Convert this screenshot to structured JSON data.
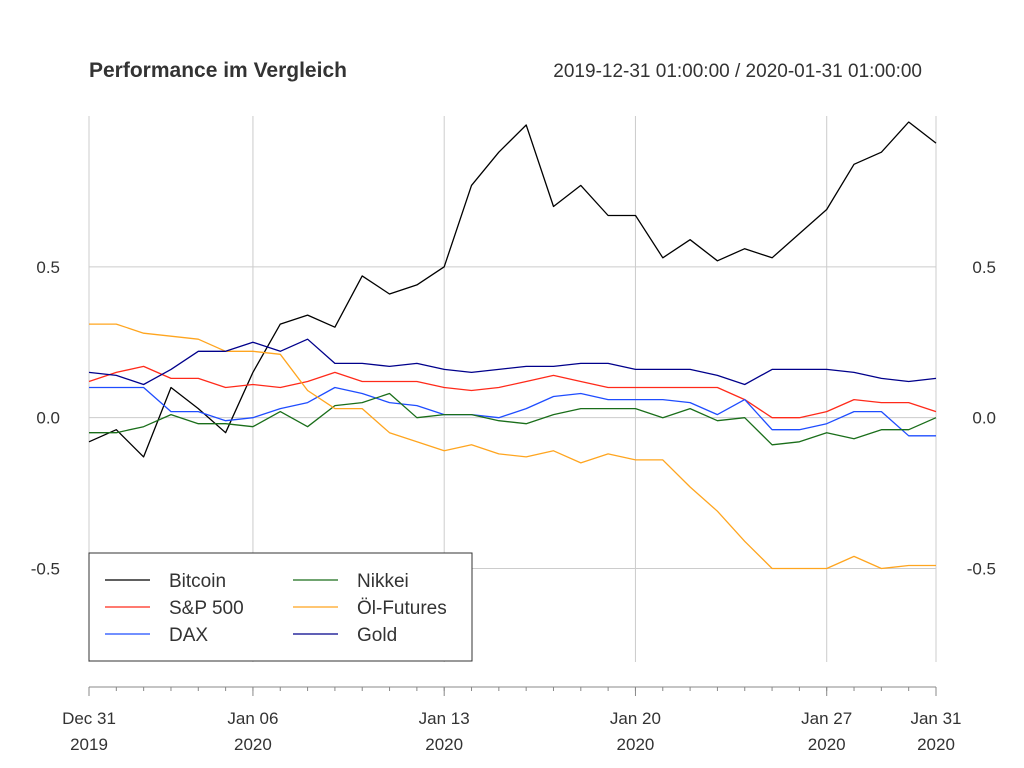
{
  "chart_data": {
    "type": "line",
    "title": "Performance im Vergleich",
    "subtitle": "2019-12-31 01:00:00 / 2020-01-31 01:00:00",
    "xlabel": "",
    "ylabel": "",
    "x": [
      "2019-12-31",
      "2020-01-01",
      "2020-01-02",
      "2020-01-03",
      "2020-01-04",
      "2020-01-05",
      "2020-01-06",
      "2020-01-07",
      "2020-01-08",
      "2020-01-09",
      "2020-01-10",
      "2020-01-11",
      "2020-01-12",
      "2020-01-13",
      "2020-01-14",
      "2020-01-15",
      "2020-01-16",
      "2020-01-17",
      "2020-01-18",
      "2020-01-19",
      "2020-01-20",
      "2020-01-21",
      "2020-01-22",
      "2020-01-23",
      "2020-01-24",
      "2020-01-25",
      "2020-01-26",
      "2020-01-27",
      "2020-01-28",
      "2020-01-29",
      "2020-01-30",
      "2020-01-31"
    ],
    "xlim": [
      "2019-12-31",
      "2020-01-31"
    ],
    "ylim": [
      -0.81,
      1.0
    ],
    "grid": true,
    "legend_position": "bottom-left",
    "x_ticks": [
      {
        "date": "2019-12-31",
        "line1": "Dec 31",
        "line2": "2019"
      },
      {
        "date": "2020-01-06",
        "line1": "Jan 06",
        "line2": "2020"
      },
      {
        "date": "2020-01-13",
        "line1": "Jan 13",
        "line2": "2020"
      },
      {
        "date": "2020-01-20",
        "line1": "Jan 20",
        "line2": "2020"
      },
      {
        "date": "2020-01-27",
        "line1": "Jan 27",
        "line2": "2020"
      },
      {
        "date": "2020-01-31",
        "line1": "Jan 31",
        "line2": "2020"
      }
    ],
    "y_ticks": [
      {
        "value": 0.5,
        "label": "0.5"
      },
      {
        "value": 0.0,
        "label": "0.0"
      },
      {
        "value": -0.5,
        "label": "-0.5"
      }
    ],
    "series": [
      {
        "name": "Bitcoin",
        "color": "#000000",
        "values": [
          -0.08,
          -0.04,
          -0.13,
          0.1,
          0.03,
          -0.05,
          0.15,
          0.31,
          0.34,
          0.3,
          0.47,
          0.41,
          0.44,
          0.5,
          0.77,
          0.88,
          0.97,
          0.7,
          0.77,
          0.67,
          0.67,
          0.53,
          0.59,
          0.52,
          0.56,
          0.53,
          0.61,
          0.69,
          0.84,
          0.88,
          0.98,
          0.91
        ]
      },
      {
        "name": "S&P 500",
        "color": "#ff2a1a",
        "values": [
          0.12,
          0.15,
          0.17,
          0.13,
          0.13,
          0.1,
          0.11,
          0.1,
          0.12,
          0.15,
          0.12,
          0.12,
          0.12,
          0.1,
          0.09,
          0.1,
          0.12,
          0.14,
          0.12,
          0.1,
          0.1,
          0.1,
          0.1,
          0.1,
          0.06,
          0.0,
          0.0,
          0.02,
          0.06,
          0.05,
          0.05,
          0.02
        ]
      },
      {
        "name": "DAX",
        "color": "#1f4dff",
        "values": [
          0.1,
          0.1,
          0.1,
          0.02,
          0.02,
          -0.01,
          0.0,
          0.03,
          0.05,
          0.1,
          0.08,
          0.05,
          0.04,
          0.01,
          0.01,
          0.0,
          0.03,
          0.07,
          0.08,
          0.06,
          0.06,
          0.06,
          0.05,
          0.01,
          0.06,
          -0.04,
          -0.04,
          -0.02,
          0.02,
          0.02,
          -0.06,
          -0.06
        ]
      },
      {
        "name": "Nikkei",
        "color": "#1a6e1a",
        "values": [
          -0.05,
          -0.05,
          -0.03,
          0.01,
          -0.02,
          -0.02,
          -0.03,
          0.02,
          -0.03,
          0.04,
          0.05,
          0.08,
          0.0,
          0.01,
          0.01,
          -0.01,
          -0.02,
          0.01,
          0.03,
          0.03,
          0.03,
          0.0,
          0.03,
          -0.01,
          0.0,
          -0.09,
          -0.08,
          -0.05,
          -0.07,
          -0.04,
          -0.04,
          0.0
        ]
      },
      {
        "name": "Öl-Futures",
        "color": "#ffa51f",
        "values": [
          0.31,
          0.31,
          0.28,
          0.27,
          0.26,
          0.22,
          0.22,
          0.21,
          0.09,
          0.03,
          0.03,
          -0.05,
          -0.08,
          -0.11,
          -0.09,
          -0.12,
          -0.13,
          -0.11,
          -0.15,
          -0.12,
          -0.14,
          -0.14,
          -0.23,
          -0.31,
          -0.41,
          -0.5,
          -0.5,
          -0.5,
          -0.46,
          -0.5,
          -0.49,
          -0.49
        ]
      },
      {
        "name": "Gold",
        "color": "#00008b",
        "values": [
          0.15,
          0.14,
          0.11,
          0.16,
          0.22,
          0.22,
          0.25,
          0.22,
          0.26,
          0.18,
          0.18,
          0.17,
          0.18,
          0.16,
          0.15,
          0.16,
          0.17,
          0.17,
          0.18,
          0.18,
          0.16,
          0.16,
          0.16,
          0.14,
          0.11,
          0.16,
          0.16,
          0.16,
          0.15,
          0.13,
          0.12,
          0.13
        ]
      }
    ]
  }
}
